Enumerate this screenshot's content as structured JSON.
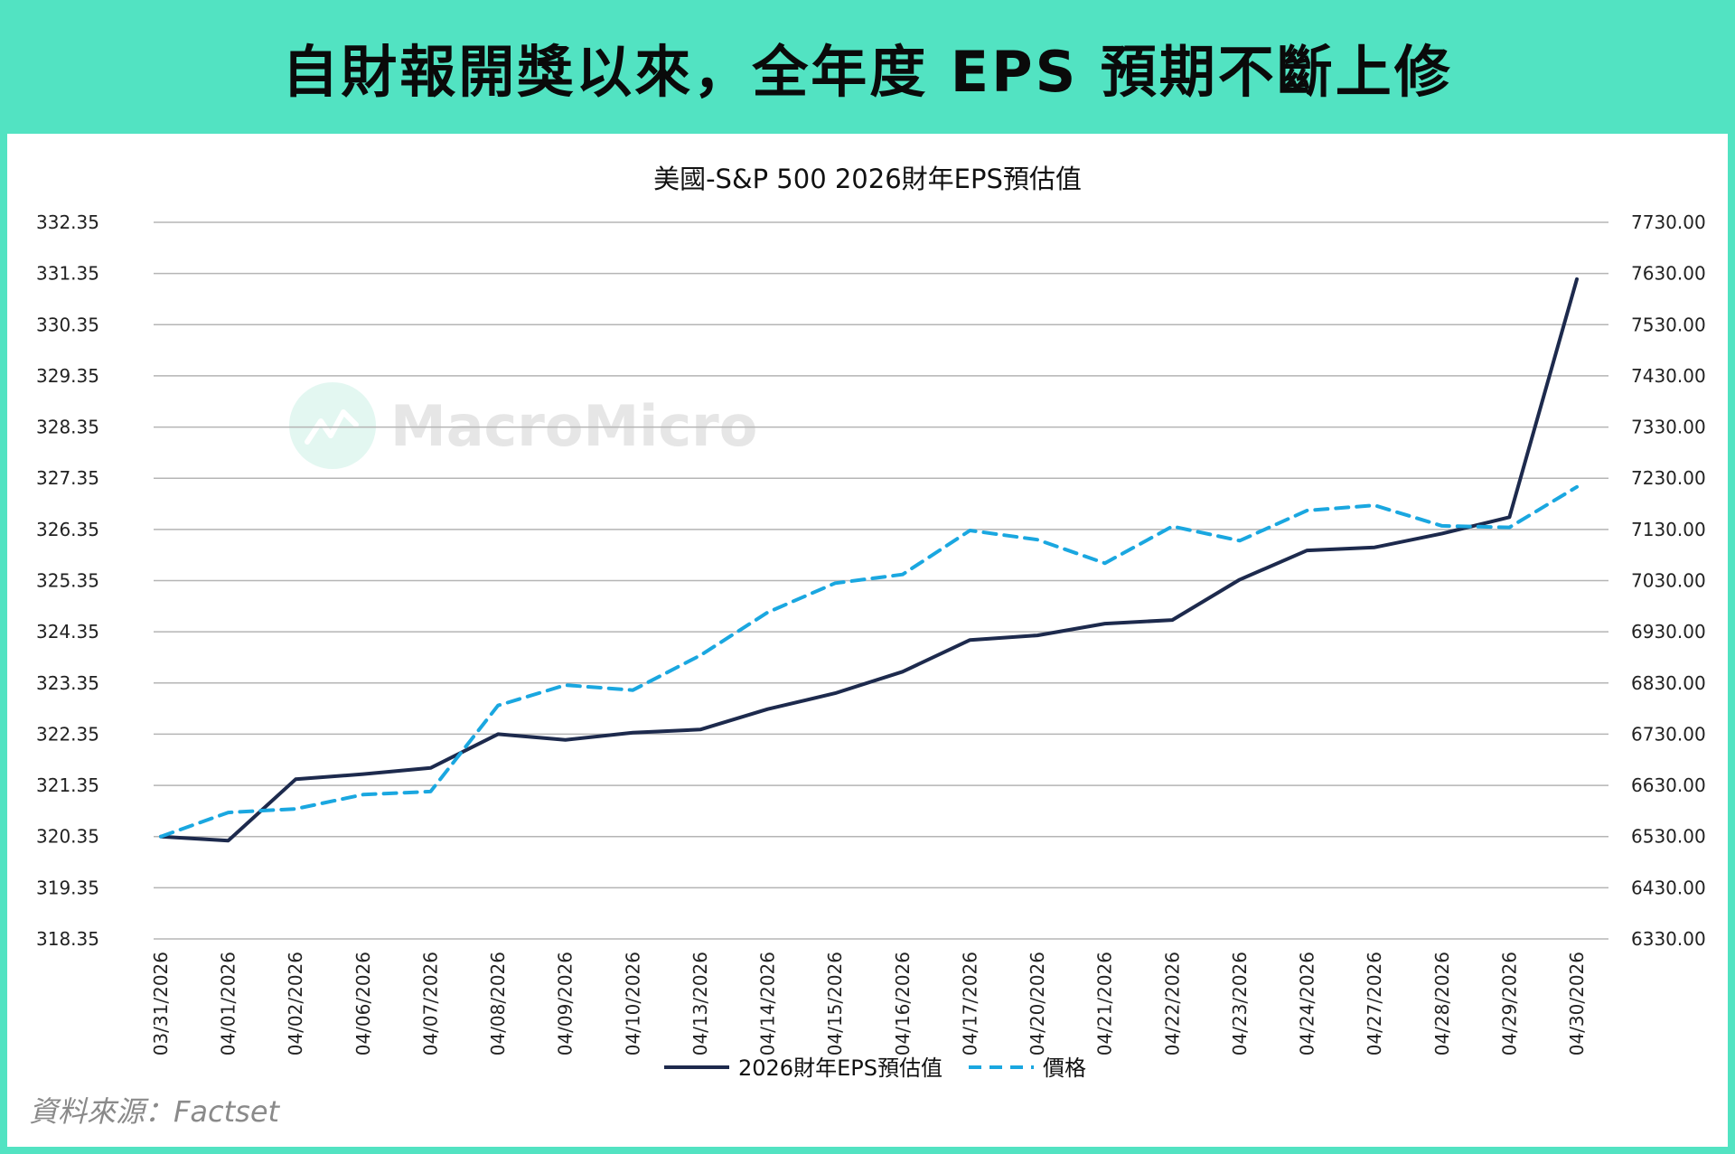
{
  "header": {
    "title": "自財報開獎以來，全年度 EPS 預期不斷上修"
  },
  "watermark": {
    "text": "MacroMicro",
    "icon": "macromicro-logo-icon",
    "color": "#e6e6e6"
  },
  "source": {
    "text": "資料來源：Factset"
  },
  "colors": {
    "background": "#52e3c2",
    "panel": "#ffffff",
    "eps_line": "#1d2a4d",
    "price_line": "#1aa7e0",
    "grid": "#b5b5b5"
  },
  "chart_data": {
    "type": "line",
    "title": "美國-S&P 500 2026財年EPS預估值",
    "xlabel": "",
    "ylabel": "",
    "grid": true,
    "legend_position": "bottom-center",
    "categories": [
      "03/31/2026",
      "04/01/2026",
      "04/02/2026",
      "04/06/2026",
      "04/07/2026",
      "04/08/2026",
      "04/09/2026",
      "04/10/2026",
      "04/13/2026",
      "04/14/2026",
      "04/15/2026",
      "04/16/2026",
      "04/17/2026",
      "04/20/2026",
      "04/21/2026",
      "04/22/2026",
      "04/23/2026",
      "04/24/2026",
      "04/27/2026",
      "04/28/2026",
      "04/29/2026",
      "04/30/2026"
    ],
    "y_left": {
      "range": [
        318.35,
        332.35
      ],
      "ticks": [
        "318.35",
        "319.35",
        "320.35",
        "321.35",
        "322.35",
        "323.35",
        "324.35",
        "325.35",
        "326.35",
        "327.35",
        "328.35",
        "329.35",
        "330.35",
        "331.35",
        "332.35"
      ]
    },
    "y_right": {
      "range": [
        6330,
        7730
      ],
      "ticks": [
        "6330.00",
        "6430.00",
        "6530.00",
        "6630.00",
        "6730.00",
        "6830.00",
        "6930.00",
        "7030.00",
        "7130.00",
        "7230.00",
        "7330.00",
        "7430.00",
        "7530.00",
        "7630.00",
        "7730.00"
      ]
    },
    "series": [
      {
        "name": "2026財年EPS預估值",
        "axis": "left",
        "style": "solid",
        "color": "#1d2a4d",
        "values": [
          320.35,
          320.27,
          321.47,
          321.57,
          321.69,
          322.35,
          322.24,
          322.38,
          322.44,
          322.84,
          323.15,
          323.57,
          324.19,
          324.28,
          324.51,
          324.58,
          325.37,
          325.94,
          326.0,
          326.27,
          326.59,
          331.24
        ]
      },
      {
        "name": "價格",
        "axis": "right",
        "style": "dashed",
        "color": "#1aa7e0",
        "values": [
          6530,
          6577,
          6584,
          6612,
          6618,
          6786,
          6826,
          6816,
          6884,
          6968,
          7025,
          7042,
          7128,
          7110,
          7064,
          7136,
          7108,
          7167,
          7177,
          7137,
          7134,
          7213
        ]
      }
    ]
  }
}
